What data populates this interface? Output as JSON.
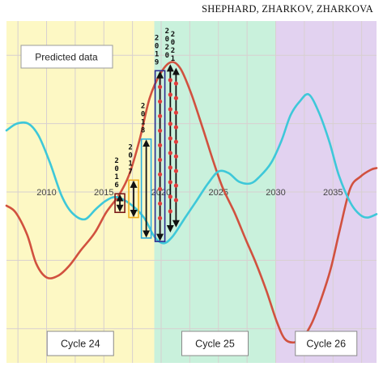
{
  "credit": "SHEPHARD,  ZHARKOV,  ZHARKOVA",
  "colors": {
    "cycle24_bg": "#fdf8c4",
    "cycle25_bg": "#c9f1dc",
    "cycle26_bg": "#e2d2f0",
    "grid": "#d8d0d0",
    "red_curve": "#d1513f",
    "cyan_curve": "#3ec8d9",
    "arrow": "#111111",
    "marker": "#e23b3b"
  },
  "chart_data": {
    "type": "line",
    "title": "",
    "xlabel": "",
    "ylabel": "",
    "legend_text": "Predicted data",
    "x_ticks": [
      2010,
      2015,
      2020,
      2025,
      2030,
      2035
    ],
    "xlim": [
      2006.5,
      2038.8
    ],
    "ylim": [
      -1.0,
      1.0
    ],
    "cycles": [
      {
        "label": "Cycle 24",
        "start": 2006.5,
        "end": 2019.4,
        "color": "#fdf8c4"
      },
      {
        "label": "Cycle 25",
        "start": 2019.4,
        "end": 2030.0,
        "color": "#c9f1dc"
      },
      {
        "label": "Cycle 26",
        "start": 2030.0,
        "end": 2038.8,
        "color": "#e2d2f0"
      }
    ],
    "series": [
      {
        "color": "#d1513f",
        "x": [
          2006.5,
          2007.3,
          2008.3,
          2009.1,
          2010.0,
          2011.0,
          2012.0,
          2013.0,
          2014.2,
          2015.2,
          2016.3,
          2017.2,
          2018.1,
          2019.0,
          2020.0,
          2020.9,
          2021.7,
          2022.6,
          2023.6,
          2024.6,
          2025.4,
          2026.4,
          2027.4,
          2028.3,
          2029.2,
          2030.1,
          2030.8,
          2031.6,
          2032.4,
          2033.2,
          2034.0,
          2034.8,
          2035.6,
          2036.5,
          2037.4,
          2038.3,
          2038.8
        ],
        "values": [
          -0.08,
          -0.12,
          -0.25,
          -0.42,
          -0.5,
          -0.49,
          -0.43,
          -0.34,
          -0.24,
          -0.12,
          -0.02,
          0.1,
          0.3,
          0.55,
          0.7,
          0.76,
          0.72,
          0.58,
          0.38,
          0.17,
          0.02,
          -0.12,
          -0.28,
          -0.42,
          -0.58,
          -0.76,
          -0.86,
          -0.88,
          -0.85,
          -0.76,
          -0.62,
          -0.45,
          -0.22,
          0.02,
          0.09,
          0.13,
          0.14
        ]
      },
      {
        "color": "#3ec8d9",
        "x": [
          2006.5,
          2007.4,
          2008.4,
          2009.3,
          2010.3,
          2011.3,
          2012.2,
          2013.3,
          2014.3,
          2015.2,
          2016.1,
          2017.3,
          2018.5,
          2019.4,
          2020.2,
          2021.0,
          2022.1,
          2023.1,
          2024.1,
          2025.0,
          2025.9,
          2026.8,
          2027.8,
          2028.6,
          2029.6,
          2030.5,
          2031.3,
          2032.1,
          2032.9,
          2033.8,
          2034.7,
          2035.5,
          2036.5,
          2037.3,
          2038.0,
          2038.8
        ],
        "values": [
          0.36,
          0.4,
          0.4,
          0.33,
          0.17,
          -0.02,
          -0.12,
          -0.16,
          -0.1,
          -0.05,
          -0.03,
          -0.07,
          -0.15,
          -0.26,
          -0.3,
          -0.26,
          -0.15,
          -0.05,
          0.05,
          0.12,
          0.11,
          0.06,
          0.05,
          0.09,
          0.17,
          0.3,
          0.45,
          0.53,
          0.57,
          0.46,
          0.29,
          0.1,
          -0.06,
          -0.13,
          -0.15,
          -0.13
        ]
      }
    ],
    "year_markers": [
      {
        "label": "2016",
        "x": 2016.4,
        "y_top": -0.02,
        "y_bottom": -0.11,
        "box_color": "#7a1a1a"
      },
      {
        "label": "2017",
        "x": 2017.6,
        "y_top": 0.06,
        "y_bottom": -0.14,
        "box_color": "#f0b020"
      },
      {
        "label": "2018",
        "x": 2018.7,
        "y_top": 0.3,
        "y_bottom": -0.26,
        "box_color": "#2aaee0"
      },
      {
        "label": "2019",
        "x": 2019.9,
        "y_top": 0.7,
        "y_bottom": -0.28,
        "box_color": "#2b2b8f"
      },
      {
        "label": "2020",
        "x": 2020.8,
        "y_top": 0.74,
        "y_bottom": -0.23,
        "box_color": null
      },
      {
        "label": "2021",
        "x": 2021.3,
        "y_top": 0.72,
        "y_bottom": -0.2,
        "box_color": null
      }
    ]
  }
}
